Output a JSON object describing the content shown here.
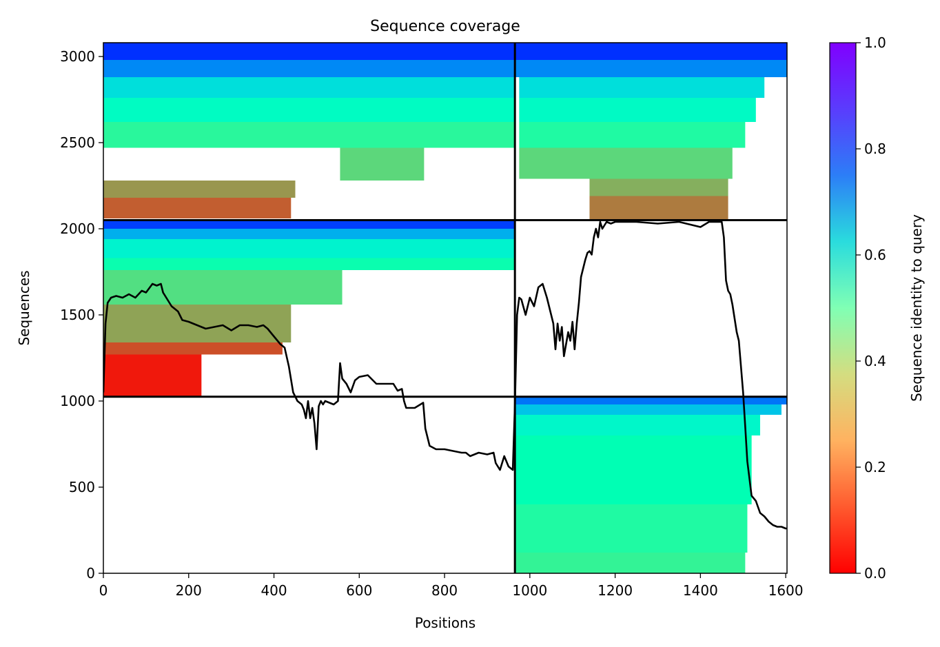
{
  "chart_data": {
    "type": "heatmap",
    "title": "Sequence coverage",
    "xlabel": "Positions",
    "ylabel": "Sequences",
    "xlim": [
      0,
      1603
    ],
    "ylim": [
      0,
      3080
    ],
    "xticks": [
      0,
      200,
      400,
      600,
      800,
      1000,
      1200,
      1400,
      1600
    ],
    "yticks": [
      0,
      500,
      1000,
      1500,
      2000,
      2500,
      3000
    ],
    "colorbar": {
      "label": "Sequence identity to query",
      "range": [
        0.0,
        1.0
      ],
      "ticks": [
        0.0,
        0.2,
        0.4,
        0.6,
        0.8,
        1.0
      ],
      "colormap": "rainbow_r"
    },
    "divider_lines": {
      "x": [
        965
      ],
      "y": [
        1025,
        2050
      ]
    },
    "blocks": [
      {
        "name": "lower-right",
        "x": [
          965,
          1603
        ],
        "y": [
          0,
          1025
        ],
        "bands": [
          {
            "y": [
              0,
              120
            ],
            "id": 0.4,
            "x_end": 1505
          },
          {
            "y": [
              120,
              400
            ],
            "id": 0.44,
            "x_end": 1510
          },
          {
            "y": [
              400,
              800
            ],
            "id": 0.5,
            "x_end": 1520
          },
          {
            "y": [
              800,
              920
            ],
            "id": 0.58,
            "x_end": 1540
          },
          {
            "y": [
              920,
              980
            ],
            "id": 0.72,
            "x_end": 1590
          },
          {
            "y": [
              980,
              1025
            ],
            "id": 0.85,
            "x_end": 1603
          }
        ]
      },
      {
        "name": "upper-left-main",
        "x": [
          0,
          965
        ],
        "y": [
          1025,
          2050
        ],
        "bands": [
          {
            "y": [
              1025,
              1270
            ],
            "x_start": 0,
            "id": 0.03,
            "x_end": 230
          },
          {
            "y": [
              1270,
              1340
            ],
            "x_start": 0,
            "id": 0.1,
            "x_end": 420
          },
          {
            "y": [
              1340,
              1560
            ],
            "x_start": 0,
            "id": 0.22,
            "x_end": 440
          },
          {
            "y": [
              1560,
              1760
            ],
            "x_start": 0,
            "id": 0.34,
            "x_end": 560
          },
          {
            "y": [
              1760,
              1830
            ],
            "x_start": 0,
            "id": 0.48,
            "x_end": 965
          },
          {
            "y": [
              1830,
              1940
            ],
            "x_start": 0,
            "id": 0.6,
            "x_end": 965
          },
          {
            "y": [
              1940,
              2000
            ],
            "x_start": 0,
            "id": 0.76,
            "x_end": 965
          },
          {
            "y": [
              2000,
              2050
            ],
            "x_start": 0,
            "id": 0.92,
            "x_end": 965
          }
        ]
      },
      {
        "name": "top-left",
        "x": [
          0,
          965
        ],
        "y": [
          2050,
          3080
        ],
        "bands": [
          {
            "y": [
              2060,
              2180
            ],
            "x_start": 0,
            "id": 0.12,
            "x_end": 440
          },
          {
            "y": [
              2180,
              2280
            ],
            "x_start": 0,
            "id": 0.2,
            "x_end": 450
          },
          {
            "y": [
              2280,
              2470
            ],
            "x_start": 555,
            "id": 0.32,
            "x_end": 752
          },
          {
            "y": [
              2470,
              2620
            ],
            "x_start": 0,
            "id": 0.42,
            "x_end": 965
          },
          {
            "y": [
              2620,
              2760
            ],
            "x_start": 0,
            "id": 0.55,
            "x_end": 965
          },
          {
            "y": [
              2760,
              2880
            ],
            "x_start": 0,
            "id": 0.66,
            "x_end": 965
          },
          {
            "y": [
              2880,
              2980
            ],
            "x_start": 0,
            "id": 0.82,
            "x_end": 965
          },
          {
            "y": [
              2980,
              3080
            ],
            "x_start": 0,
            "id": 0.94,
            "x_end": 965
          }
        ]
      },
      {
        "name": "top-right",
        "x": [
          965,
          1603
        ],
        "y": [
          2050,
          3080
        ],
        "bands": [
          {
            "y": [
              2050,
              2190
            ],
            "x_start": 1140,
            "id": 0.16,
            "x_end": 1465
          },
          {
            "y": [
              2190,
              2290
            ],
            "x_start": 1140,
            "id": 0.24,
            "x_end": 1465
          },
          {
            "y": [
              2290,
              2470
            ],
            "x_start": 975,
            "id": 0.32,
            "x_end": 1475
          },
          {
            "y": [
              2470,
              2620
            ],
            "x_start": 975,
            "id": 0.44,
            "x_end": 1505
          },
          {
            "y": [
              2620,
              2760
            ],
            "x_start": 975,
            "id": 0.56,
            "x_end": 1530
          },
          {
            "y": [
              2760,
              2880
            ],
            "x_start": 975,
            "id": 0.66,
            "x_end": 1550
          },
          {
            "y": [
              2880,
              2980
            ],
            "x_start": 965,
            "id": 0.82,
            "x_end": 1603
          },
          {
            "y": [
              2980,
              3080
            ],
            "x_start": 965,
            "id": 0.94,
            "x_end": 1603
          }
        ]
      }
    ],
    "coverage_line": {
      "x": [
        0,
        5,
        10,
        18,
        30,
        45,
        60,
        75,
        90,
        100,
        115,
        125,
        135,
        140,
        150,
        160,
        175,
        185,
        200,
        220,
        240,
        260,
        280,
        300,
        320,
        340,
        360,
        375,
        385,
        395,
        405,
        415,
        425,
        435,
        445,
        455,
        465,
        470,
        475,
        480,
        485,
        490,
        495,
        500,
        505,
        510,
        515,
        520,
        530,
        540,
        550,
        555,
        560,
        570,
        580,
        590,
        600,
        620,
        640,
        660,
        680,
        690,
        700,
        705,
        710,
        730,
        750,
        755,
        765,
        780,
        800,
        820,
        840,
        850,
        860,
        880,
        900,
        915,
        920,
        930,
        940,
        950,
        960,
        965,
        970,
        975,
        980,
        990,
        1000,
        1010,
        1020,
        1030,
        1040,
        1050,
        1055,
        1060,
        1065,
        1070,
        1075,
        1080,
        1090,
        1095,
        1100,
        1105,
        1110,
        1115,
        1120,
        1130,
        1135,
        1140,
        1145,
        1150,
        1155,
        1160,
        1165,
        1170,
        1180,
        1190,
        1200,
        1250,
        1300,
        1350,
        1400,
        1420,
        1440,
        1450,
        1455,
        1460,
        1465,
        1470,
        1475,
        1480,
        1485,
        1490,
        1495,
        1500,
        1505,
        1510,
        1520,
        1530,
        1540,
        1550,
        1560,
        1570,
        1580,
        1590,
        1600,
        1603
      ],
      "y": [
        1050,
        1450,
        1570,
        1600,
        1610,
        1600,
        1620,
        1600,
        1640,
        1630,
        1680,
        1670,
        1680,
        1630,
        1590,
        1550,
        1520,
        1470,
        1460,
        1440,
        1420,
        1430,
        1440,
        1410,
        1440,
        1440,
        1430,
        1440,
        1420,
        1390,
        1360,
        1330,
        1310,
        1200,
        1050,
        1000,
        980,
        950,
        900,
        1000,
        900,
        960,
        870,
        720,
        970,
        1000,
        980,
        1000,
        990,
        980,
        1000,
        1220,
        1130,
        1100,
        1050,
        1120,
        1140,
        1150,
        1100,
        1100,
        1100,
        1060,
        1070,
        1000,
        960,
        960,
        990,
        840,
        740,
        720,
        720,
        710,
        700,
        700,
        680,
        700,
        690,
        700,
        640,
        600,
        680,
        620,
        600,
        980,
        1500,
        1600,
        1590,
        1500,
        1600,
        1550,
        1660,
        1680,
        1600,
        1500,
        1450,
        1300,
        1450,
        1350,
        1430,
        1260,
        1400,
        1350,
        1460,
        1300,
        1450,
        1570,
        1720,
        1820,
        1860,
        1870,
        1850,
        1950,
        2000,
        1950,
        2040,
        2000,
        2040,
        2030,
        2040,
        2040,
        2030,
        2040,
        2010,
        2040,
        2040,
        2040,
        1950,
        1700,
        1640,
        1620,
        1560,
        1480,
        1400,
        1350,
        1200,
        1050,
        850,
        650,
        450,
        420,
        350,
        330,
        300,
        280,
        270,
        270,
        260,
        260
      ]
    }
  }
}
